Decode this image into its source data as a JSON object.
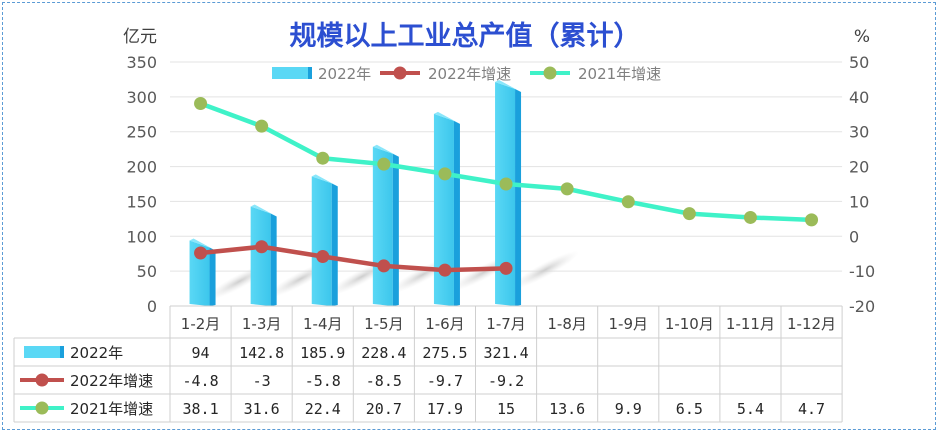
{
  "chart_data": {
    "type": "bar",
    "title": "规模以上工业总产值（累计）",
    "left_unit": "亿元",
    "right_unit": "%",
    "left_ticks": [
      "350",
      "300",
      "250",
      "200",
      "150",
      "100",
      "50",
      "0"
    ],
    "right_ticks": [
      "50",
      "40",
      "30",
      "20",
      "10",
      "0",
      "-10",
      "-20"
    ],
    "ylim_left": [
      0,
      350
    ],
    "ylim_right": [
      -20,
      50
    ],
    "categories": [
      "1-2月",
      "1-3月",
      "1-4月",
      "1-5月",
      "1-6月",
      "1-7月",
      "1-8月",
      "1-9月",
      "1-10月",
      "1-11月",
      "1-12月"
    ],
    "legend_position": "top",
    "grid": true,
    "series": [
      {
        "name": "2022年",
        "type": "bar",
        "axis": "left",
        "color": "#40d0f2",
        "values": [
          94,
          142.8,
          185.9,
          228.4,
          275.5,
          321.4,
          null,
          null,
          null,
          null,
          null
        ],
        "labels": [
          "94",
          "142.8",
          "185.9",
          "228.4",
          "275.5",
          "321.4",
          "",
          "",
          "",
          "",
          ""
        ]
      },
      {
        "name": "2022年增速",
        "type": "line",
        "axis": "right",
        "color": "#c0504d",
        "values": [
          -4.8,
          -3,
          -5.8,
          -8.5,
          -9.7,
          -9.2,
          null,
          null,
          null,
          null,
          null
        ],
        "labels": [
          "-4.8",
          "-3",
          "-5.8",
          "-8.5",
          "-9.7",
          "-9.2",
          "",
          "",
          "",
          "",
          ""
        ]
      },
      {
        "name": "2021年增速",
        "type": "line",
        "axis": "right",
        "color": "#3ff2c8",
        "marker_color": "#9bbb59",
        "values": [
          38.1,
          31.6,
          22.4,
          20.7,
          17.9,
          15,
          13.6,
          9.9,
          6.5,
          5.4,
          4.7
        ],
        "labels": [
          "38.1",
          "31.6",
          "22.4",
          "20.7",
          "17.9",
          "15",
          "13.6",
          "9.9",
          "6.5",
          "5.4",
          "4.7"
        ]
      }
    ]
  }
}
